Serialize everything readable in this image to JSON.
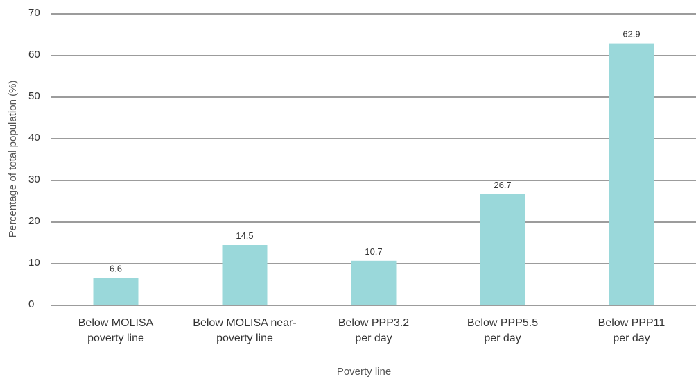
{
  "chart_data": {
    "type": "bar",
    "title": "",
    "xlabel": "Poverty line",
    "ylabel": "Percentage of total population (%)",
    "categories": [
      [
        "Below MOLISA",
        "poverty line"
      ],
      [
        "Below MOLISA near-",
        "poverty line"
      ],
      [
        "Below PPP3.2",
        "per day"
      ],
      [
        "Below PPP5.5",
        "per day"
      ],
      [
        "Below PPP11",
        "per day"
      ]
    ],
    "values": [
      6.6,
      14.5,
      10.7,
      26.7,
      62.9
    ],
    "data_labels": [
      "6.6",
      "14.5",
      "10.7",
      "26.7",
      "62.9"
    ],
    "ylim": [
      0,
      70
    ],
    "yticks": [
      0,
      10,
      20,
      30,
      40,
      50,
      60,
      70
    ],
    "grid": true,
    "bar_color": "#9ad8da",
    "grid_color": "#3a3a3a"
  }
}
